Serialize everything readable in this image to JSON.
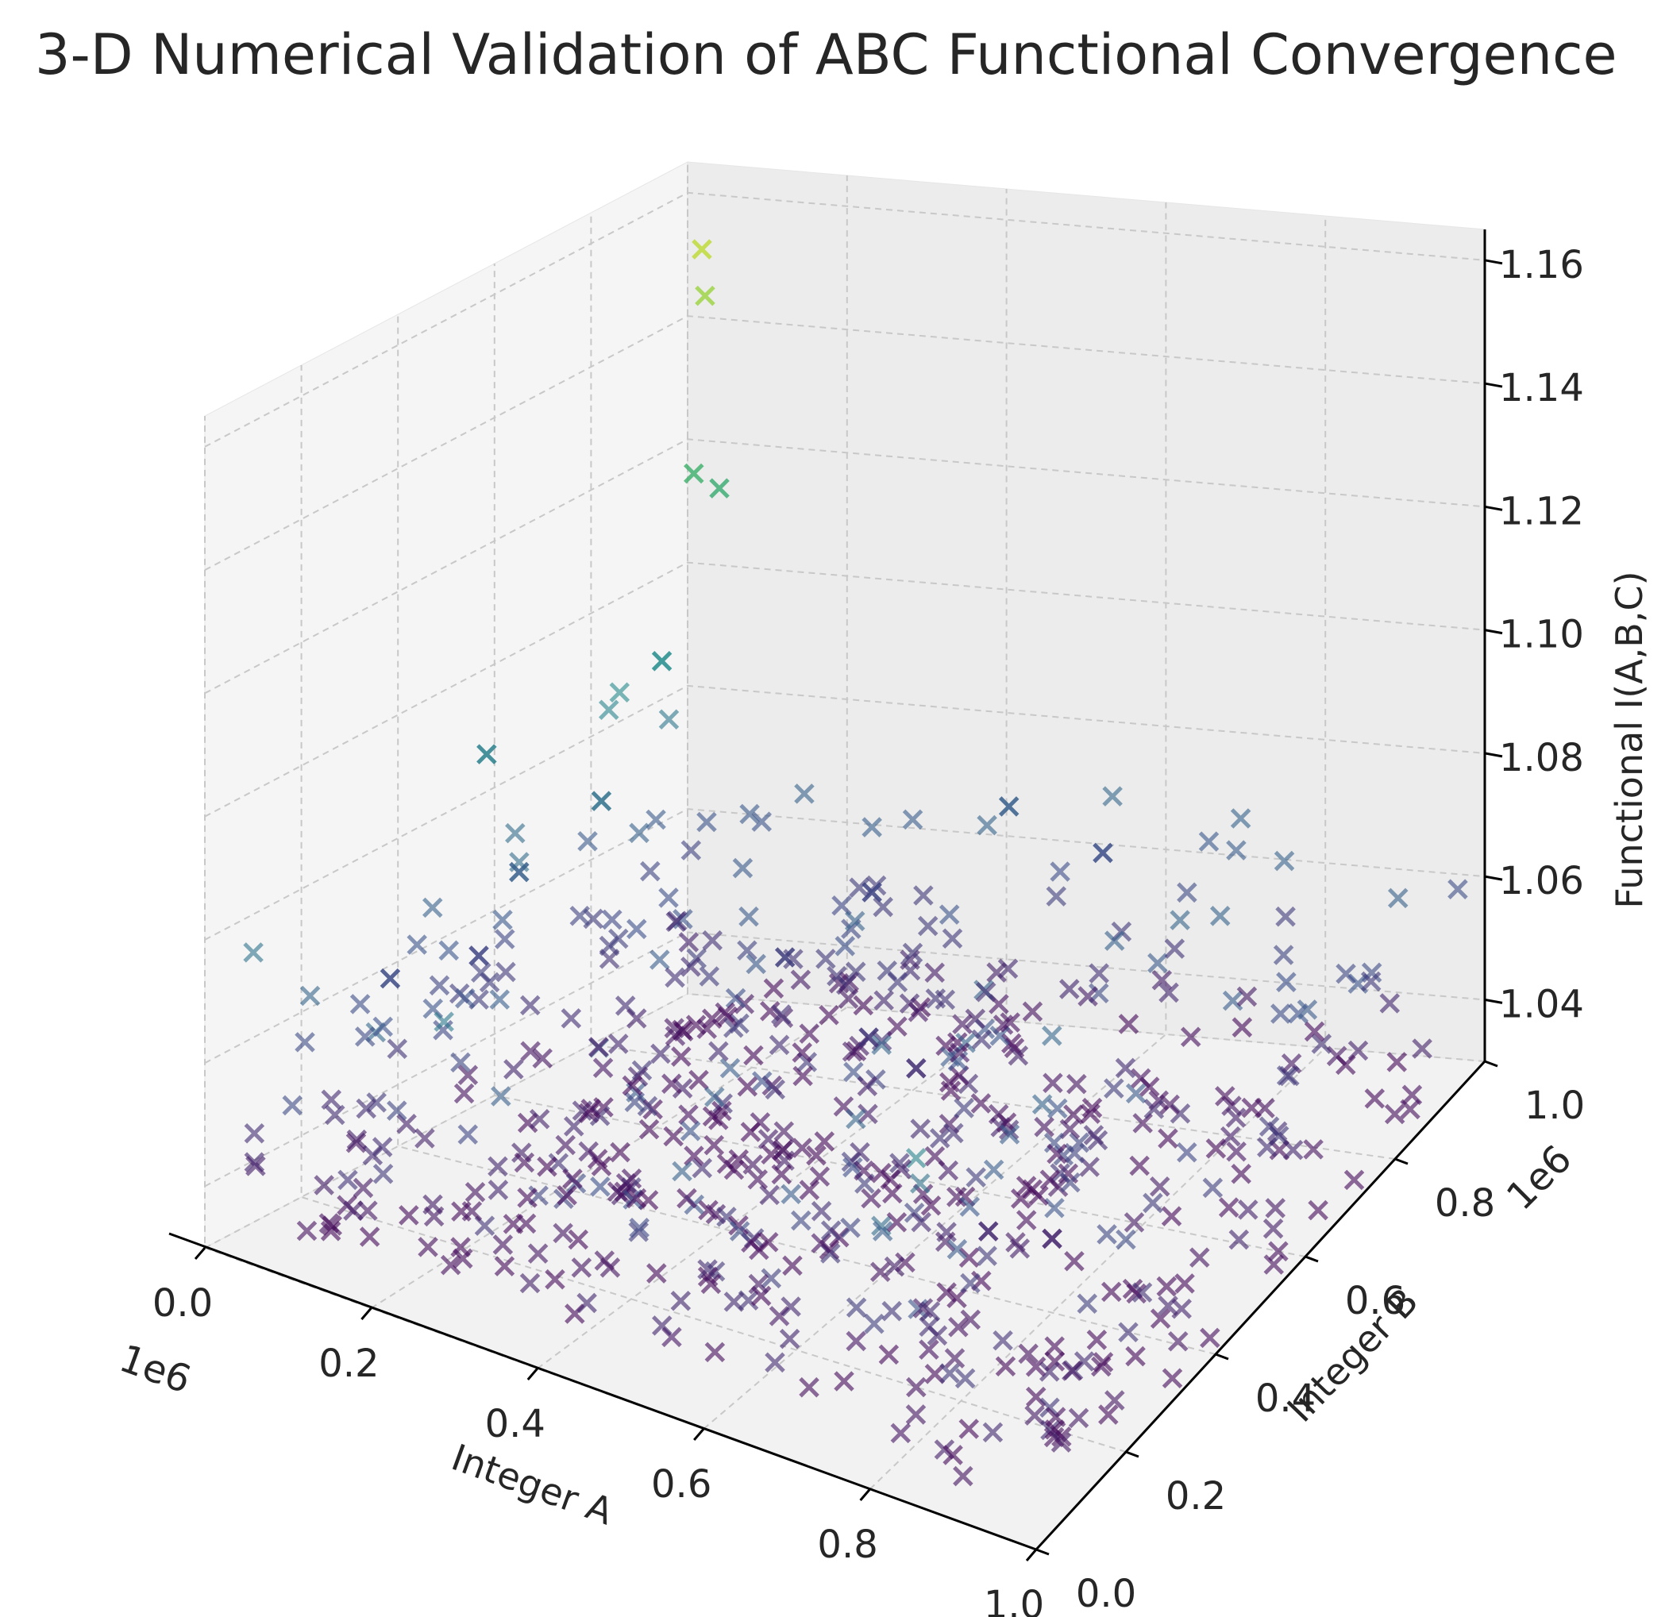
{
  "chart_data": {
    "type": "scatter3d",
    "title": "3-D Numerical Validation of ABC Functional Convergence",
    "xlabel": "Integer A",
    "ylabel": "Integer B",
    "zlabel": "Functional I(A,B,C)",
    "x_offset_label": "1e6",
    "y_offset_label": "1e6",
    "xlim": [
      0.0,
      1.0
    ],
    "ylim": [
      0.0,
      1.0
    ],
    "zlim": [
      1.03,
      1.165
    ],
    "x_ticks": [
      "0.0",
      "0.2",
      "0.4",
      "0.6",
      "0.8",
      "1.0"
    ],
    "y_ticks": [
      "0.0",
      "0.2",
      "0.4",
      "0.6",
      "0.8",
      "1.0"
    ],
    "z_ticks": [
      "1.04",
      "1.06",
      "1.08",
      "1.10",
      "1.12",
      "1.14",
      "1.16"
    ],
    "marker": "x",
    "colormap": [
      "#440154",
      "#3b528b",
      "#21918c",
      "#5ec962",
      "#fde725"
    ],
    "points_approx": 600,
    "highlight_points": [
      {
        "a": 0.03,
        "b": 0.98,
        "z": 1.152
      },
      {
        "a": 0.04,
        "b": 0.97,
        "z": 1.145
      },
      {
        "a": 0.05,
        "b": 0.93,
        "z": 1.118
      },
      {
        "a": 0.07,
        "b": 0.95,
        "z": 1.115
      },
      {
        "a": 0.1,
        "b": 0.78,
        "z": 1.095
      },
      {
        "a": 0.02,
        "b": 0.55,
        "z": 1.088
      },
      {
        "a": 0.12,
        "b": 0.62,
        "z": 1.08
      },
      {
        "a": 0.06,
        "b": 0.55,
        "z": 1.07
      },
      {
        "a": 0.45,
        "b": 0.92,
        "z": 1.07
      },
      {
        "a": 0.55,
        "b": 0.95,
        "z": 1.062
      },
      {
        "a": 0.32,
        "b": 0.85,
        "z": 1.058
      },
      {
        "a": 0.3,
        "b": 0.7,
        "z": 1.055
      },
      {
        "a": 0.45,
        "b": 0.62,
        "z": 1.05
      },
      {
        "a": 0.52,
        "b": 0.6,
        "z": 1.048
      },
      {
        "a": 0.75,
        "b": 0.35,
        "z": 1.045
      },
      {
        "a": 0.8,
        "b": 0.4,
        "z": 1.042
      },
      {
        "a": 0.02,
        "b": 0.35,
        "z": 1.06
      },
      {
        "a": 0.04,
        "b": 0.5,
        "z": 1.058
      }
    ]
  }
}
